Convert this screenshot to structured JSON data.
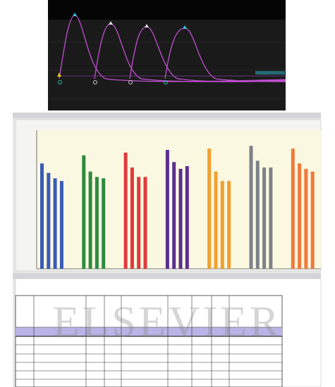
{
  "watermark": "ELSEVIER",
  "chart_data": {
    "type": "bar",
    "ylim": [
      0,
      100
    ],
    "groups": [
      {
        "color": "#3a5bb5",
        "values": [
          78,
          71,
          67,
          65
        ]
      },
      {
        "color": "#2e8b3e",
        "values": [
          84,
          72,
          68,
          67
        ]
      },
      {
        "color": "#e03a3a",
        "values": [
          86,
          75,
          68,
          68
        ]
      },
      {
        "color": "#5a2f8f",
        "values": [
          88,
          79,
          74,
          76
        ]
      },
      {
        "color": "#f0a030",
        "values": [
          89,
          72,
          65,
          65
        ]
      },
      {
        "color": "#7c8288",
        "values": [
          91,
          80,
          75,
          75
        ]
      },
      {
        "color": "#ef7a3a",
        "values": [
          89,
          78,
          74,
          72
        ]
      }
    ]
  }
}
